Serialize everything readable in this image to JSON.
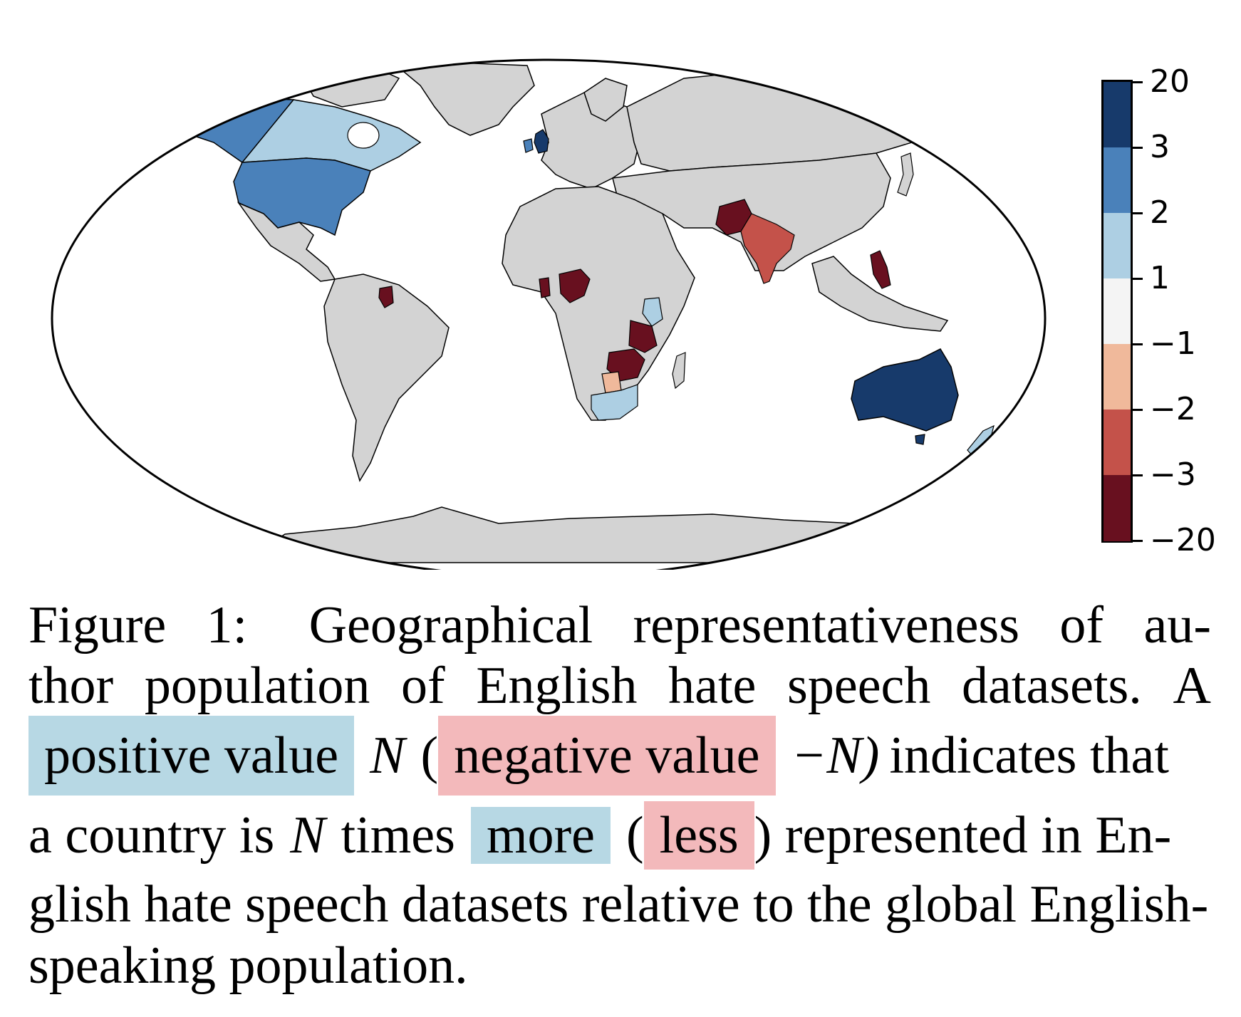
{
  "map": {
    "projection": "world-map-oval",
    "base_color": "#d3d3d3",
    "ocean_color": "#ffffff",
    "regions": [
      {
        "name": "Alaska",
        "value_bin": "2 to 3",
        "color": "#4a81ba"
      },
      {
        "name": "Canada",
        "value_bin": "1 to 2",
        "color": "#adcfe3"
      },
      {
        "name": "United States",
        "value_bin": "2 to 3",
        "color": "#4a81ba"
      },
      {
        "name": "United Kingdom",
        "value_bin": "3 to 20",
        "color": "#173a6b"
      },
      {
        "name": "Ireland",
        "value_bin": "2 to 3",
        "color": "#4a81ba"
      },
      {
        "name": "Guyana",
        "value_bin": "-20 to -3",
        "color": "#68101f"
      },
      {
        "name": "Nigeria",
        "value_bin": "-20 to -3",
        "color": "#68101f"
      },
      {
        "name": "Ghana",
        "value_bin": "-20 to -3",
        "color": "#68101f"
      },
      {
        "name": "Kenya",
        "value_bin": "1 to 2",
        "color": "#adcfe3"
      },
      {
        "name": "Tanzania",
        "value_bin": "-20 to -3",
        "color": "#68101f"
      },
      {
        "name": "Zambia",
        "value_bin": "-20 to -3",
        "color": "#68101f"
      },
      {
        "name": "Zimbabwe",
        "value_bin": "-20 to -3",
        "color": "#68101f"
      },
      {
        "name": "Botswana",
        "value_bin": "-2 to -1",
        "color": "#f0b99b"
      },
      {
        "name": "South Africa",
        "value_bin": "1 to 2",
        "color": "#adcfe3"
      },
      {
        "name": "Pakistan",
        "value_bin": "-20 to -3",
        "color": "#68101f"
      },
      {
        "name": "India",
        "value_bin": "-3 to -2",
        "color": "#c4524a"
      },
      {
        "name": "Philippines",
        "value_bin": "-20 to -3",
        "color": "#68101f"
      },
      {
        "name": "Australia",
        "value_bin": "3 to 20",
        "color": "#173a6b"
      },
      {
        "name": "New Zealand",
        "value_bin": "1 to 2",
        "color": "#adcfe3"
      }
    ]
  },
  "colorbar": {
    "ticks": [
      "20",
      "3",
      "2",
      "1",
      "−1",
      "−2",
      "−3",
      "−20"
    ],
    "colors": [
      "#173a6b",
      "#4a81ba",
      "#adcfe3",
      "#f4f4f4",
      "#f0b99b",
      "#c4524a",
      "#68101f"
    ]
  },
  "caption": {
    "line1": [
      "Figure",
      "1:",
      "Geographical",
      "representativeness",
      "of",
      "au-"
    ],
    "line2": [
      "thor",
      "population",
      "of",
      "English",
      "hate",
      "speech",
      "datasets.",
      "A"
    ],
    "line3": {
      "positive": "positive value",
      "n1": "N",
      "open_paren": "(",
      "negative": "negative value",
      "minus_n": "−N)",
      "rest": "indicates that"
    },
    "line4": {
      "start": "a country is",
      "n": "N",
      "times": "times",
      "more": "more",
      "open_paren": "(",
      "less": "less",
      "rest": ") represented in En-"
    },
    "line5": "glish hate speech datasets relative to the global English-",
    "line6": "speaking population."
  }
}
